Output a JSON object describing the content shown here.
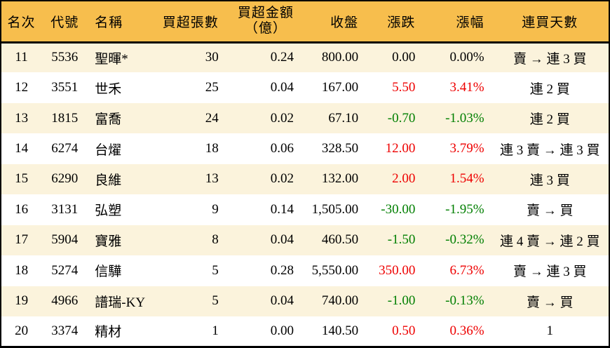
{
  "chart_data": {
    "type": "table",
    "columns": [
      {
        "key": "rank",
        "label": "名次"
      },
      {
        "key": "code",
        "label": "代號"
      },
      {
        "key": "name",
        "label": "名稱"
      },
      {
        "key": "volume",
        "label": "買超張數"
      },
      {
        "key": "amount",
        "label": "買超金額\n（億）"
      },
      {
        "key": "close",
        "label": "收盤"
      },
      {
        "key": "change",
        "label": "漲跌"
      },
      {
        "key": "change_pct",
        "label": "漲幅"
      },
      {
        "key": "streak",
        "label": "連買天數"
      }
    ],
    "rows": [
      {
        "rank": "11",
        "code": "5536",
        "name": "聖暉*",
        "volume": "30",
        "amount": "0.24",
        "close": "800.00",
        "change": "0.00",
        "change_pct": "0.00%",
        "streak": "賣 → 連 3 買",
        "trend": "flat"
      },
      {
        "rank": "12",
        "code": "3551",
        "name": "世禾",
        "volume": "25",
        "amount": "0.04",
        "close": "167.00",
        "change": "5.50",
        "change_pct": "3.41%",
        "streak": "連 2 買",
        "trend": "up"
      },
      {
        "rank": "13",
        "code": "1815",
        "name": "富喬",
        "volume": "24",
        "amount": "0.02",
        "close": "67.10",
        "change": "-0.70",
        "change_pct": "-1.03%",
        "streak": "連 2 買",
        "trend": "down"
      },
      {
        "rank": "14",
        "code": "6274",
        "name": "台燿",
        "volume": "18",
        "amount": "0.06",
        "close": "328.50",
        "change": "12.00",
        "change_pct": "3.79%",
        "streak": "連 3 賣 → 連 3 買",
        "trend": "up"
      },
      {
        "rank": "15",
        "code": "6290",
        "name": "良維",
        "volume": "13",
        "amount": "0.02",
        "close": "132.00",
        "change": "2.00",
        "change_pct": "1.54%",
        "streak": "連 3 買",
        "trend": "up"
      },
      {
        "rank": "16",
        "code": "3131",
        "name": "弘塑",
        "volume": "9",
        "amount": "0.14",
        "close": "1,505.00",
        "change": "-30.00",
        "change_pct": "-1.95%",
        "streak": "賣 → 買",
        "trend": "down"
      },
      {
        "rank": "17",
        "code": "5904",
        "name": "寶雅",
        "volume": "8",
        "amount": "0.04",
        "close": "460.50",
        "change": "-1.50",
        "change_pct": "-0.32%",
        "streak": "連 4 賣 → 連 2 買",
        "trend": "down"
      },
      {
        "rank": "18",
        "code": "5274",
        "name": "信驊",
        "volume": "5",
        "amount": "0.28",
        "close": "5,550.00",
        "change": "350.00",
        "change_pct": "6.73%",
        "streak": "賣 → 連 3 買",
        "trend": "up"
      },
      {
        "rank": "19",
        "code": "4966",
        "name": "譜瑞-KY",
        "volume": "5",
        "amount": "0.04",
        "close": "740.00",
        "change": "-1.00",
        "change_pct": "-0.13%",
        "streak": "賣 → 買",
        "trend": "down"
      },
      {
        "rank": "20",
        "code": "3374",
        "name": "精材",
        "volume": "1",
        "amount": "0.00",
        "close": "140.50",
        "change": "0.50",
        "change_pct": "0.36%",
        "streak": "1",
        "trend": "up"
      }
    ]
  },
  "colors": {
    "header_bg": "#F7BE4D",
    "row_stripe_bg": "#FBF3DC",
    "row_bg": "#FFFFFF",
    "up_text": "#EE0000",
    "down_text": "#007F00",
    "neutral_text": "#000000",
    "border": "#000000"
  }
}
